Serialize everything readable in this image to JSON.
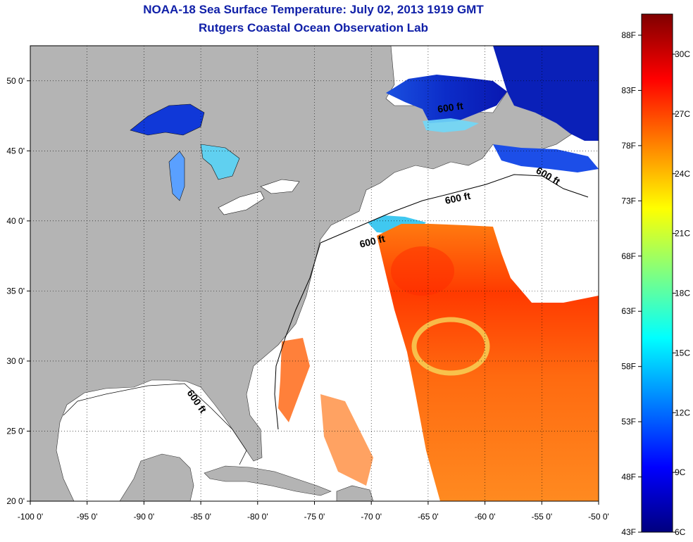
{
  "title": "NOAA-18 Sea Surface Temperature:  July 02, 2013 1919 GMT",
  "subtitle": "Rutgers Coastal Ocean Observation Lab",
  "map": {
    "lon_range": [
      -100,
      -50
    ],
    "lat_range": [
      20,
      52.5
    ],
    "lon_ticks": [
      {
        "value": -100,
        "label": "-100 0'"
      },
      {
        "value": -95,
        "label": "-95 0'"
      },
      {
        "value": -90,
        "label": "-90 0'"
      },
      {
        "value": -85,
        "label": "-85 0'"
      },
      {
        "value": -80,
        "label": "-80 0'"
      },
      {
        "value": -75,
        "label": "-75 0'"
      },
      {
        "value": -70,
        "label": "-70 0'"
      },
      {
        "value": -65,
        "label": "-65 0'"
      },
      {
        "value": -60,
        "label": "-60 0'"
      },
      {
        "value": -55,
        "label": "-55 0'"
      },
      {
        "value": -50,
        "label": "-50 0'"
      }
    ],
    "lat_ticks": [
      {
        "value": 20,
        "label": "20 0'"
      },
      {
        "value": 25,
        "label": "25 0'"
      },
      {
        "value": 30,
        "label": "30 0'"
      },
      {
        "value": 35,
        "label": "35 0'"
      },
      {
        "value": 40,
        "label": "40 0'"
      },
      {
        "value": 45,
        "label": "45 0'"
      },
      {
        "value": 50,
        "label": "50 0'"
      }
    ],
    "land_color": "#b4b4b4",
    "no_data_color": "#ffffff",
    "grid": true,
    "depth_contour_label": "600 ft"
  },
  "colorbar": {
    "colors": [
      "#00007f",
      "#0000ff",
      "#0080ff",
      "#00ffff",
      "#80ff80",
      "#ffff00",
      "#ff8000",
      "#ff0000",
      "#7f0000"
    ],
    "fahrenheit_labels": [
      "88F",
      "83F",
      "78F",
      "73F",
      "68F",
      "63F",
      "58F",
      "53F",
      "48F",
      "43F"
    ],
    "celsius_labels": [
      "30C",
      "27C",
      "24C",
      "21C",
      "18C",
      "15C",
      "12C",
      "9C",
      "6C"
    ]
  }
}
